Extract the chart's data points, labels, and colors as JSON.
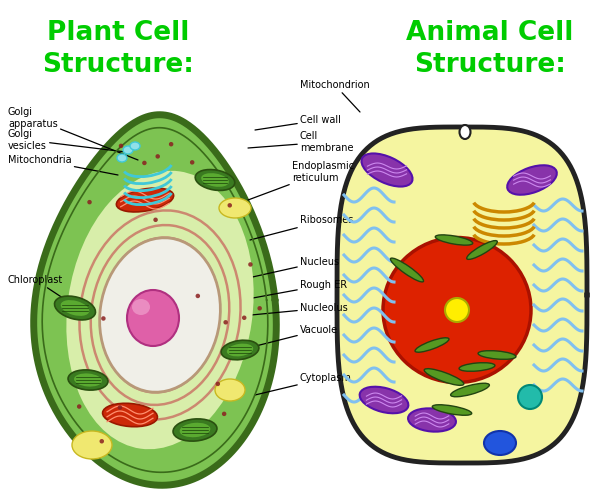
{
  "bg_color": "#ffffff",
  "plant_title_line1": "Plant Cell",
  "plant_title_line2": "Structure:",
  "animal_title_line1": "Animal Cell",
  "animal_title_line2": "Structure:",
  "title_color": "#00cc00",
  "title_fontsize": 19,
  "label_fontsize": 7,
  "plant_cell": {
    "outer_color": "#7dc352",
    "outer_border": "#3a6b1a",
    "inner_light": "#b8df7a",
    "vacuole_fill": "#e8f5d0",
    "nucleus_fill": "#e8f0e0",
    "nucleus_border": "#c8a888",
    "nucleolus_color": "#e060a0",
    "nucleolus_shine": "#f090c0",
    "er_color": "#d89080",
    "chloroplast_outer": "#3a7a20",
    "chloroplast_inner": "#5aaa30",
    "mitochondria_color": "#cc3010",
    "mitochondria_inner": "#ff7050",
    "golgi_color": "#40c8d8",
    "yellow_patch": "#f0e870",
    "dot_color": "#8b2020"
  },
  "animal_cell": {
    "outer_color": "#f5f5a0",
    "outer_border": "#222222",
    "nucleus_fill": "#dd2200",
    "nucleus_border": "#aa1100",
    "nucleolus_color": "#ffee00",
    "er_color": "#80c0f0",
    "golgi_color": "#cc8800",
    "mito_color": "#8833aa",
    "mito_inner": "#cc88ee",
    "lyso_color": "#2255dd",
    "green_rod": "#559922",
    "teal_dot": "#22aaaa"
  },
  "black_border": "#111111"
}
